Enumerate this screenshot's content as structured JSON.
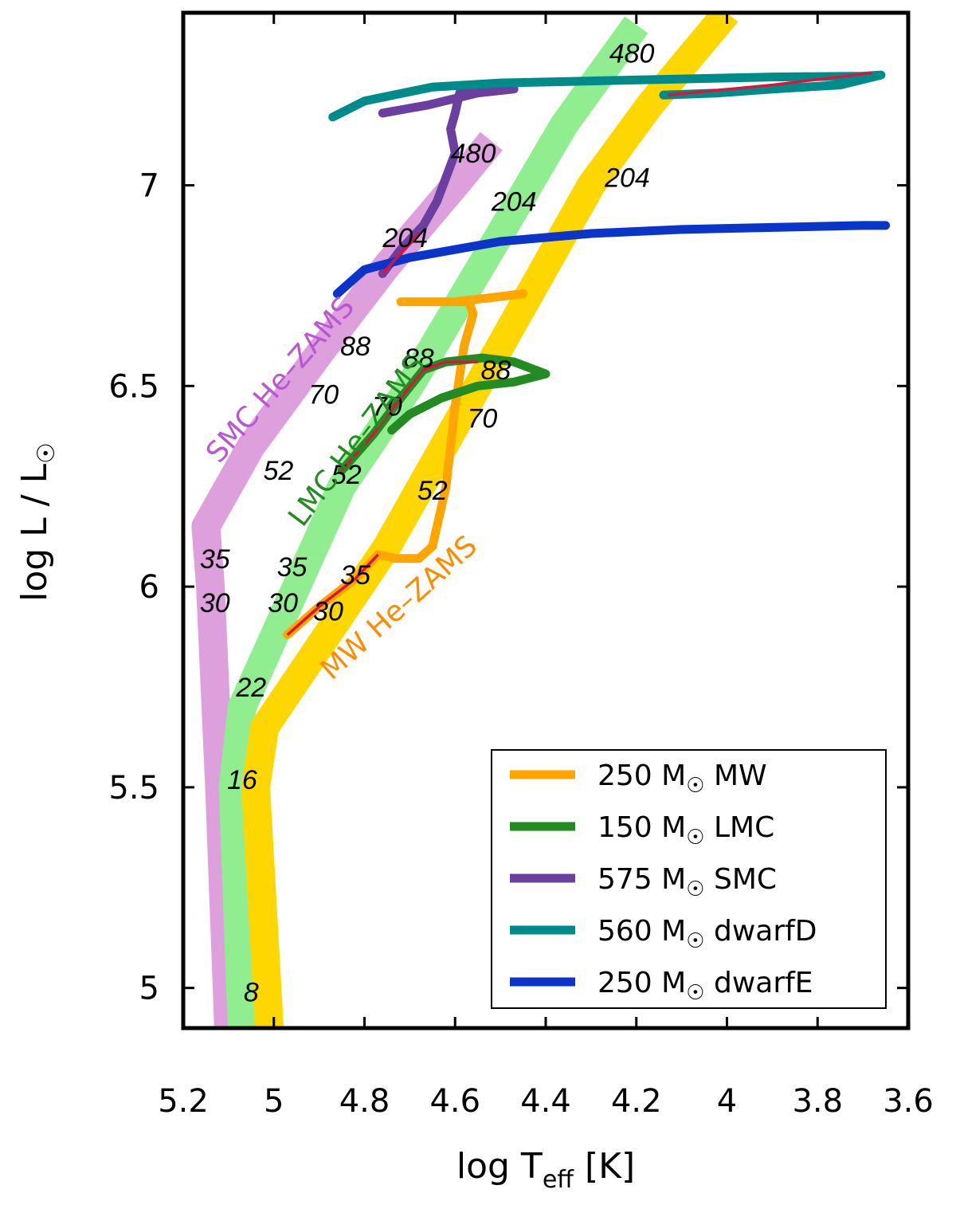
{
  "chart_data": {
    "type": "line",
    "xlabel": "log T",
    "xlabel_sub": "eff",
    "xlabel_unit": " [K]",
    "ylabel": "log L / L",
    "ylabel_sun": "☉",
    "xlim": [
      5.2,
      3.6
    ],
    "ylim": [
      4.9,
      7.43
    ],
    "x_ticks": [
      5.2,
      5.0,
      4.8,
      4.6,
      4.4,
      4.2,
      4.0,
      3.8,
      3.6
    ],
    "x_tick_labels": [
      "5.2",
      "5",
      "4.8",
      "4.6",
      "4.4",
      "4.2",
      "4",
      "3.8",
      "3.6"
    ],
    "y_ticks": [
      5.0,
      5.5,
      6.0,
      6.5,
      7.0
    ],
    "y_tick_labels": [
      "5",
      "5.5",
      "6",
      "6.5",
      "7"
    ],
    "grid": false,
    "legend_position": "bottom-right",
    "zams_bands": [
      {
        "label": "SMC He–ZAMS",
        "color": "#dda0dd",
        "label_color": "#ba55d3",
        "points": [
          [
            5.1,
            4.9
          ],
          [
            5.12,
            5.5
          ],
          [
            5.14,
            6.0
          ],
          [
            5.15,
            6.15
          ],
          [
            5.05,
            6.35
          ],
          [
            4.9,
            6.58
          ],
          [
            4.75,
            6.8
          ],
          [
            4.6,
            7.0
          ],
          [
            4.52,
            7.11
          ]
        ],
        "mass_labels": [
          {
            "text": "16",
            "x": 5.07,
            "y": 5.52
          },
          {
            "text": "22",
            "x": 5.05,
            "y": 5.75
          },
          {
            "text": "30",
            "x": 5.13,
            "y": 5.96
          },
          {
            "text": "35",
            "x": 5.13,
            "y": 6.07
          },
          {
            "text": "52",
            "x": 4.99,
            "y": 6.29
          },
          {
            "text": "70",
            "x": 4.89,
            "y": 6.48
          },
          {
            "text": "88",
            "x": 4.82,
            "y": 6.6
          },
          {
            "text": "204",
            "x": 4.71,
            "y": 6.87
          },
          {
            "text": "480",
            "x": 4.56,
            "y": 7.08
          }
        ]
      },
      {
        "label": "LMC He–ZAMS",
        "color": "#90ee90",
        "label_color": "#228b22",
        "points": [
          [
            5.07,
            4.9
          ],
          [
            5.09,
            5.5
          ],
          [
            5.07,
            5.7
          ],
          [
            4.95,
            6.0
          ],
          [
            4.85,
            6.25
          ],
          [
            4.7,
            6.5
          ],
          [
            4.5,
            6.88
          ],
          [
            4.36,
            7.15
          ],
          [
            4.2,
            7.4
          ]
        ],
        "mass_labels": [
          {
            "text": "8",
            "x": 5.05,
            "y": 4.99
          },
          {
            "text": "30",
            "x": 4.98,
            "y": 5.96
          },
          {
            "text": "35",
            "x": 4.96,
            "y": 6.05
          },
          {
            "text": "52",
            "x": 4.84,
            "y": 6.28
          },
          {
            "text": "70",
            "x": 4.75,
            "y": 6.45
          },
          {
            "text": "88",
            "x": 4.68,
            "y": 6.57
          },
          {
            "text": "204",
            "x": 4.47,
            "y": 6.96
          },
          {
            "text": "480",
            "x": 4.21,
            "y": 7.33
          }
        ]
      },
      {
        "label": "MW He–ZAMS",
        "color": "#ffd700",
        "label_color": "#ff8c00",
        "points": [
          [
            5.01,
            4.9
          ],
          [
            5.04,
            5.5
          ],
          [
            5.02,
            5.65
          ],
          [
            4.9,
            5.85
          ],
          [
            4.75,
            6.1
          ],
          [
            4.6,
            6.4
          ],
          [
            4.45,
            6.7
          ],
          [
            4.3,
            7.0
          ],
          [
            4.17,
            7.2
          ],
          [
            4.0,
            7.43
          ]
        ],
        "mass_labels": [
          {
            "text": "30",
            "x": 4.88,
            "y": 5.94
          },
          {
            "text": "35",
            "x": 4.82,
            "y": 6.03
          },
          {
            "text": "52",
            "x": 4.65,
            "y": 6.24
          },
          {
            "text": "70",
            "x": 4.54,
            "y": 6.42
          },
          {
            "text": "88",
            "x": 4.51,
            "y": 6.54
          },
          {
            "text": "204",
            "x": 4.22,
            "y": 7.02
          }
        ]
      }
    ],
    "series": [
      {
        "name": "250 M☉ MW",
        "color": "#ffa500",
        "points": [
          [
            4.97,
            5.88
          ],
          [
            4.9,
            5.95
          ],
          [
            4.82,
            6.02
          ],
          [
            4.77,
            6.08
          ],
          [
            4.73,
            6.07
          ],
          [
            4.68,
            6.07
          ],
          [
            4.65,
            6.1
          ],
          [
            4.62,
            6.25
          ],
          [
            4.6,
            6.45
          ],
          [
            4.58,
            6.6
          ],
          [
            4.56,
            6.68
          ],
          [
            4.57,
            6.71
          ],
          [
            4.65,
            6.71
          ],
          [
            4.72,
            6.71
          ],
          [
            4.6,
            6.71
          ],
          [
            4.52,
            6.72
          ],
          [
            4.45,
            6.73
          ]
        ]
      },
      {
        "name": "150 M☉ LMC",
        "color": "#228b22",
        "points": [
          [
            4.85,
            6.29
          ],
          [
            4.78,
            6.38
          ],
          [
            4.72,
            6.47
          ],
          [
            4.67,
            6.54
          ],
          [
            4.62,
            6.56
          ],
          [
            4.54,
            6.57
          ],
          [
            4.47,
            6.56
          ],
          [
            4.4,
            6.53
          ],
          [
            4.47,
            6.51
          ],
          [
            4.55,
            6.5
          ],
          [
            4.63,
            6.47
          ],
          [
            4.7,
            6.43
          ],
          [
            4.74,
            6.39
          ]
        ]
      },
      {
        "name": "575 M☉ SMC",
        "color": "#6a3fa0",
        "points": [
          [
            4.76,
            6.78
          ],
          [
            4.72,
            6.84
          ],
          [
            4.67,
            6.9
          ],
          [
            4.64,
            6.96
          ],
          [
            4.62,
            7.02
          ],
          [
            4.6,
            7.08
          ],
          [
            4.61,
            7.14
          ],
          [
            4.6,
            7.18
          ],
          [
            4.59,
            7.23
          ],
          [
            4.58,
            7.24
          ],
          [
            4.54,
            7.25
          ],
          [
            4.47,
            7.24
          ],
          [
            4.55,
            7.23
          ],
          [
            4.66,
            7.2
          ],
          [
            4.76,
            7.18
          ]
        ]
      },
      {
        "name": "560 M☉ dwarfD",
        "color": "#008b8b",
        "points": [
          [
            4.87,
            7.17
          ],
          [
            4.8,
            7.21
          ],
          [
            4.65,
            7.245
          ],
          [
            4.5,
            7.255
          ],
          [
            4.3,
            7.26
          ],
          [
            4.1,
            7.265
          ],
          [
            3.9,
            7.27
          ],
          [
            3.7,
            7.272
          ],
          [
            3.66,
            7.275
          ],
          [
            3.75,
            7.25
          ],
          [
            3.9,
            7.24
          ],
          [
            4.02,
            7.23
          ],
          [
            4.14,
            7.225
          ]
        ]
      },
      {
        "name": "250 M☉ dwarfE",
        "color": "#0a35c8",
        "points": [
          [
            4.86,
            6.73
          ],
          [
            4.8,
            6.79
          ],
          [
            4.7,
            6.82
          ],
          [
            4.5,
            6.86
          ],
          [
            4.3,
            6.88
          ],
          [
            4.1,
            6.89
          ],
          [
            3.9,
            6.895
          ],
          [
            3.7,
            6.9
          ],
          [
            3.65,
            6.9
          ]
        ]
      }
    ],
    "red_overlays": [
      [
        [
          4.97,
          5.88
        ],
        [
          4.9,
          5.95
        ],
        [
          4.82,
          6.02
        ],
        [
          4.77,
          6.08
        ]
      ],
      [
        [
          4.85,
          6.29
        ],
        [
          4.78,
          6.38
        ],
        [
          4.72,
          6.47
        ],
        [
          4.67,
          6.54
        ],
        [
          4.62,
          6.56
        ],
        [
          4.55,
          6.56
        ]
      ],
      [
        [
          4.76,
          6.78
        ],
        [
          4.72,
          6.83
        ],
        [
          4.68,
          6.88
        ]
      ],
      [
        [
          4.13,
          7.225
        ],
        [
          3.9,
          7.25
        ],
        [
          3.68,
          7.28
        ]
      ]
    ],
    "red_overlay_color": "#dc143c",
    "legend": [
      {
        "mass": "250 M",
        "sun": "☉",
        "suffix": " MW",
        "color": "#ffa500"
      },
      {
        "mass": "150 M",
        "sun": "☉",
        "suffix": " LMC",
        "color": "#228b22"
      },
      {
        "mass": "575 M",
        "sun": "☉",
        "suffix": " SMC",
        "color": "#6a3fa0"
      },
      {
        "mass": "560 M",
        "sun": "☉",
        "suffix": " dwarfD",
        "color": "#008b8b"
      },
      {
        "mass": "250 M",
        "sun": "☉",
        "suffix": " dwarfE",
        "color": "#0a35c8"
      }
    ]
  }
}
